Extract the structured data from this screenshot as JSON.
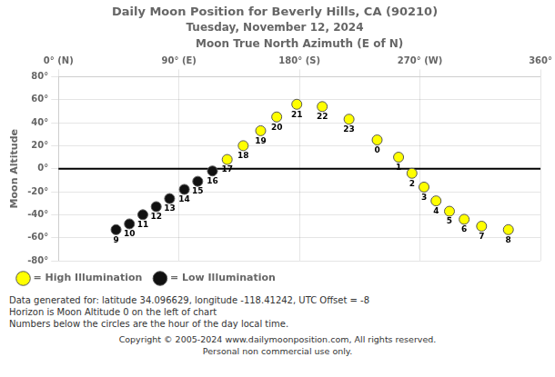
{
  "chart_data": {
    "type": "scatter",
    "title": "Daily Moon Position for Beverly Hills, CA (90210)",
    "subtitle": "Tuesday, November 12, 2024",
    "xlabel": "Moon True North Azimuth (E of N)",
    "ylabel": "Moon Altitude",
    "xlim": [
      0,
      360
    ],
    "ylim": [
      -80,
      80
    ],
    "xticks": [
      {
        "value": 0,
        "label": "0° (N)"
      },
      {
        "value": 90,
        "label": "90° (E)"
      },
      {
        "value": 180,
        "label": "180° (S)"
      },
      {
        "value": 270,
        "label": "270° (W)"
      },
      {
        "value": 360,
        "label": "360°"
      }
    ],
    "yticks": [
      {
        "value": -80,
        "label": "-80°"
      },
      {
        "value": -60,
        "label": "-60°"
      },
      {
        "value": -40,
        "label": "-40°"
      },
      {
        "value": -20,
        "label": "-20°"
      },
      {
        "value": 0,
        "label": "0°"
      },
      {
        "value": 20,
        "label": "20°"
      },
      {
        "value": 40,
        "label": "40°"
      },
      {
        "value": 60,
        "label": "60°"
      },
      {
        "value": 80,
        "label": "80°"
      }
    ],
    "grid": true,
    "legend": "bottom",
    "marker": "circle",
    "series": [
      {
        "name": "= High Illumination",
        "color": "#FFFF00",
        "x": [
          126,
          138,
          151,
          163,
          178,
          197,
          217,
          238,
          254,
          264,
          273,
          282,
          292,
          303,
          316,
          336
        ],
        "values": [
          8,
          20,
          33,
          45,
          56,
          54,
          43,
          25,
          10,
          -4,
          -16,
          -28,
          -37,
          -44,
          -50,
          -53
        ],
        "hours": [
          17,
          18,
          19,
          20,
          21,
          22,
          23,
          0,
          1,
          2,
          3,
          4,
          5,
          6,
          7,
          8
        ]
      },
      {
        "name": "= Low Illumination",
        "color": "#111111",
        "x": [
          43,
          53,
          63,
          73,
          83,
          94,
          104,
          115
        ],
        "values": [
          -53,
          -48,
          -40,
          -33,
          -26,
          -18,
          -11,
          -2
        ],
        "hours": [
          9,
          10,
          11,
          12,
          13,
          14,
          15,
          16
        ]
      }
    ],
    "horizon": {
      "y": 0,
      "color": "#000000"
    },
    "footer": [
      "Data generated for: latitude 34.096629, longitude -118.41242, UTC Offset = -8",
      "Horizon is Moon Altitude 0 on the left of chart",
      "Numbers below the circles are the hour of the day local time."
    ],
    "credits": [
      "Copyright © 2005-2024 www.dailymoonposition.com, All rights reserved.",
      "Personal non commercial use only."
    ]
  }
}
